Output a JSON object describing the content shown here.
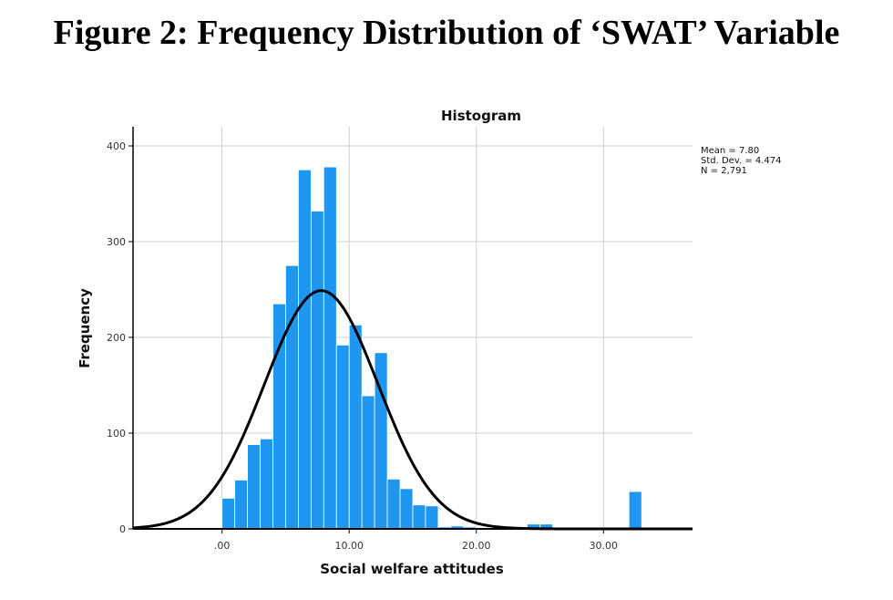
{
  "figure_title": "Figure 2: Frequency Distribution of ‘SWAT’ Variable",
  "chart_data": {
    "type": "bar",
    "title": "Histogram",
    "xlabel": "Social welfare attitudes",
    "ylabel": "Frequency",
    "xlim": [
      -7,
      37
    ],
    "ylim": [
      0,
      420
    ],
    "x_ticks": [
      0,
      10,
      20,
      30
    ],
    "x_tick_labels": [
      ".00",
      "10.00",
      "20.00",
      "30.00"
    ],
    "y_ticks": [
      0,
      100,
      200,
      300,
      400
    ],
    "y_tick_labels": [
      "0",
      "100",
      "200",
      "300",
      "400"
    ],
    "grid": true,
    "bin_width": 1,
    "bins": [
      {
        "start": 0,
        "count": 32
      },
      {
        "start": 1,
        "count": 51
      },
      {
        "start": 2,
        "count": 88
      },
      {
        "start": 3,
        "count": 94
      },
      {
        "start": 4,
        "count": 235
      },
      {
        "start": 5,
        "count": 275
      },
      {
        "start": 6,
        "count": 375
      },
      {
        "start": 7,
        "count": 332
      },
      {
        "start": 8,
        "count": 378
      },
      {
        "start": 9,
        "count": 192
      },
      {
        "start": 10,
        "count": 213
      },
      {
        "start": 11,
        "count": 139
      },
      {
        "start": 12,
        "count": 184
      },
      {
        "start": 13,
        "count": 52
      },
      {
        "start": 14,
        "count": 42
      },
      {
        "start": 15,
        "count": 25
      },
      {
        "start": 16,
        "count": 24
      },
      {
        "start": 17,
        "count": 2
      },
      {
        "start": 18,
        "count": 3
      },
      {
        "start": 19,
        "count": 2
      },
      {
        "start": 20,
        "count": 1
      },
      {
        "start": 24,
        "count": 5
      },
      {
        "start": 25,
        "count": 5
      },
      {
        "start": 32,
        "count": 39
      }
    ],
    "normal_curve": {
      "mean": 7.8,
      "std": 4.474,
      "n": 2791
    },
    "stats": [
      "Mean = 7.80",
      "Std. Dev. = 4.474",
      "N = 2,791"
    ],
    "legend_placement": "top-right",
    "colors": {
      "bar": "#1f96f0",
      "bar_edge": "#ffffff",
      "curve": "#000000",
      "grid": "#cfcfcf",
      "axis": "#000000"
    }
  }
}
